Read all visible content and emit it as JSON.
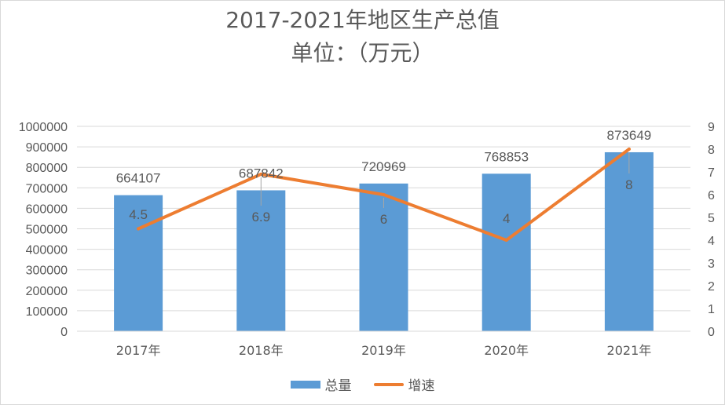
{
  "chart_data": {
    "type": "bar",
    "title": "2017-2021年地区生产总值",
    "subtitle": "单位：（万元）",
    "categories": [
      "2017年",
      "2018年",
      "2019年",
      "2020年",
      "2021年"
    ],
    "series": [
      {
        "name": "总量",
        "type": "bar",
        "axis": "left",
        "values": [
          664107,
          687842,
          720969,
          768853,
          873649
        ],
        "color": "#5b9bd5"
      },
      {
        "name": "增速",
        "type": "line",
        "axis": "right",
        "values": [
          4.5,
          6.9,
          6,
          4,
          8
        ],
        "color": "#ed7d31"
      }
    ],
    "y_left": {
      "range": [
        0,
        1000000
      ],
      "ticks": [
        "0",
        "100000",
        "200000",
        "300000",
        "400000",
        "500000",
        "600000",
        "700000",
        "800000",
        "900000",
        "1000000"
      ]
    },
    "y_right": {
      "range": [
        0,
        9
      ],
      "ticks": [
        "0",
        "1",
        "2",
        "3",
        "4",
        "5",
        "6",
        "7",
        "8",
        "9"
      ]
    },
    "bar_labels": [
      "664107",
      "687842",
      "720969",
      "768853",
      "873649"
    ],
    "line_labels": [
      "4.5",
      "6.9",
      "6",
      "4",
      "8"
    ],
    "grid": true,
    "legend": "bottom"
  },
  "colors": {
    "bar": "#5b9bd5",
    "line": "#ed7d31",
    "text": "#595959",
    "grid": "#d9d9d9",
    "leader": "#a6a6a6"
  }
}
